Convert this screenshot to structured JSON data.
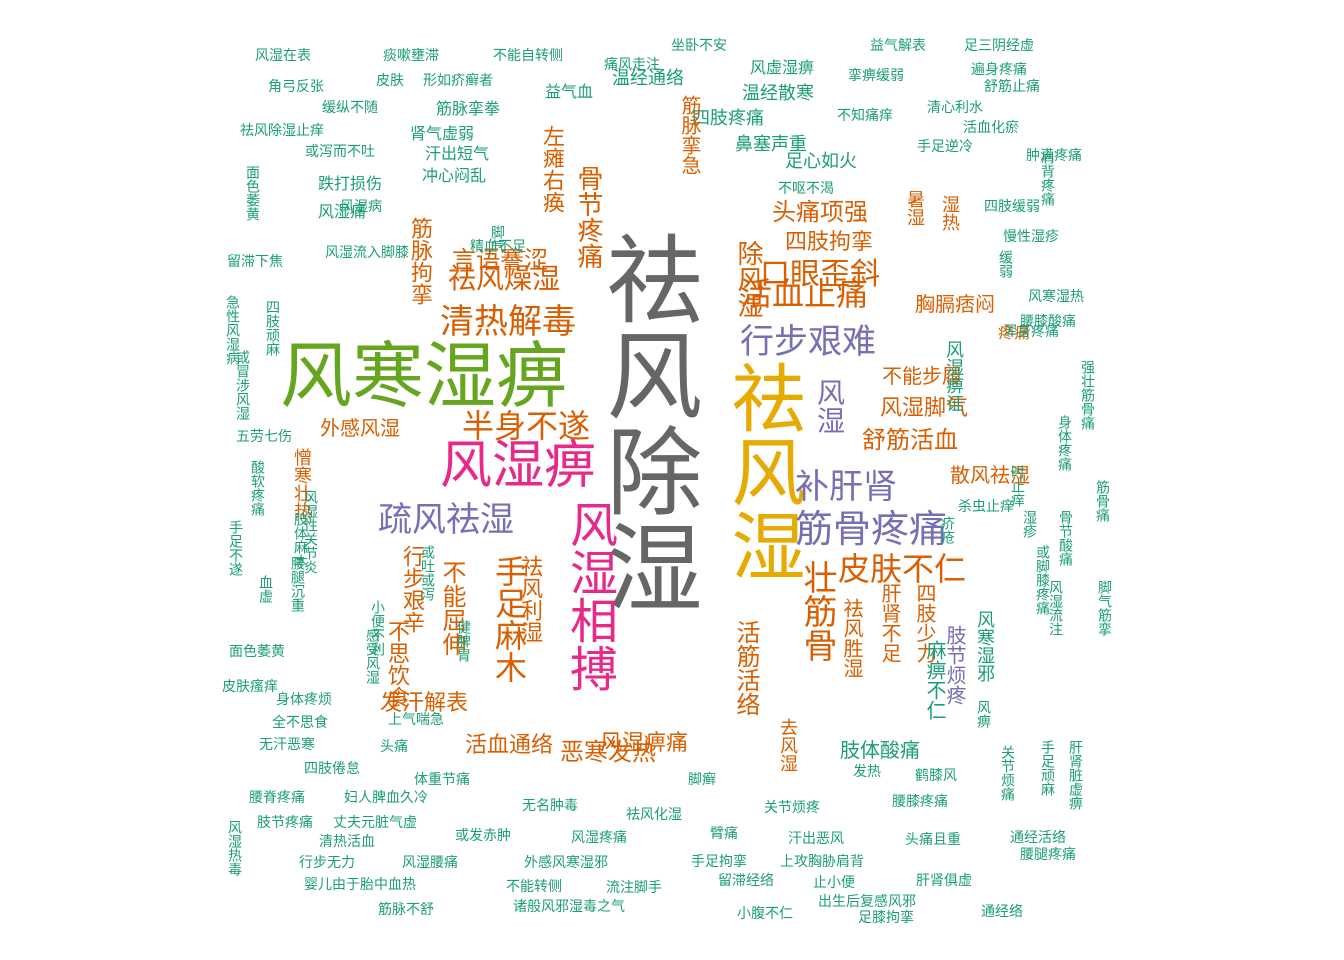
{
  "palette": {
    "teal": "#1b9e77",
    "orange": "#d95f02",
    "purple": "#7570b3",
    "pink": "#e7298a",
    "green": "#66a61e",
    "gold": "#e6ab02",
    "gray": "#666666"
  },
  "words": [
    {
      "text": "祛风除湿",
      "color": "gray",
      "weight": 10
    },
    {
      "text": "风寒湿痹",
      "color": "green",
      "weight": 8
    },
    {
      "text": "祛风湿",
      "color": "gold",
      "weight": 8
    },
    {
      "text": "风湿痹",
      "color": "pink",
      "weight": 6
    },
    {
      "text": "风湿相搏",
      "color": "pink",
      "weight": 6
    },
    {
      "text": "筋骨疼痛",
      "color": "purple",
      "weight": 5
    },
    {
      "text": "疏风祛湿",
      "color": "purple",
      "weight": 4
    },
    {
      "text": "补肝肾",
      "color": "purple",
      "weight": 4
    },
    {
      "text": "行步艰难",
      "color": "purple",
      "weight": 4
    },
    {
      "text": "清热解毒",
      "color": "orange",
      "weight": 4
    },
    {
      "text": "半身不遂",
      "color": "orange",
      "weight": 4
    },
    {
      "text": "活血止痛",
      "color": "orange",
      "weight": 4
    },
    {
      "text": "手足麻木",
      "color": "orange",
      "weight": 4
    },
    {
      "text": "皮肤不仁",
      "color": "orange",
      "weight": 4
    },
    {
      "text": "壮筋骨",
      "color": "orange",
      "weight": 4
    },
    {
      "text": "口眼歪斜",
      "color": "orange",
      "weight": 3
    },
    {
      "text": "风湿",
      "color": "purple",
      "weight": 3
    },
    {
      "text": "舒筋活血",
      "color": "orange",
      "weight": 3
    },
    {
      "text": "风湿脚气",
      "color": "orange",
      "weight": 3
    },
    {
      "text": "祛风燥湿",
      "color": "orange",
      "weight": 3
    },
    {
      "text": "言语謇涩",
      "color": "orange",
      "weight": 3
    },
    {
      "text": "骨节疼痛",
      "color": "orange",
      "weight": 3
    },
    {
      "text": "左瘫右痪",
      "color": "orange",
      "weight": 3
    },
    {
      "text": "除风湿",
      "color": "orange",
      "weight": 3
    },
    {
      "text": "头痛项强",
      "color": "orange",
      "weight": 3
    },
    {
      "text": "四肢拘挛",
      "color": "orange",
      "weight": 3
    },
    {
      "text": "不能屈伸",
      "color": "orange",
      "weight": 3
    },
    {
      "text": "行步艰辛",
      "color": "orange",
      "weight": 3
    },
    {
      "text": "祛风利湿",
      "color": "orange",
      "weight": 3
    },
    {
      "text": "活筋活络",
      "color": "orange",
      "weight": 3
    },
    {
      "text": "恶寒发热",
      "color": "orange",
      "weight": 3
    },
    {
      "text": "风湿痹痛",
      "color": "orange",
      "weight": 3
    },
    {
      "text": "活血通络",
      "color": "orange",
      "weight": 3
    },
    {
      "text": "发汗解表",
      "color": "orange",
      "weight": 3
    },
    {
      "text": "散风祛湿",
      "color": "orange",
      "weight": 3
    },
    {
      "text": "四肢少力",
      "color": "orange",
      "weight": 3
    },
    {
      "text": "肝肾不足",
      "color": "orange",
      "weight": 3
    },
    {
      "text": "祛风胜湿",
      "color": "orange",
      "weight": 3
    },
    {
      "text": "不能步履",
      "color": "orange",
      "weight": 3
    },
    {
      "text": "胸膈痞闷",
      "color": "orange",
      "weight": 3
    },
    {
      "text": "肢节烦疼",
      "color": "purple",
      "weight": 2
    },
    {
      "text": "肢体酸痛",
      "color": "teal",
      "weight": 2
    },
    {
      "text": "外感风湿",
      "color": "orange",
      "weight": 2
    },
    {
      "text": "憎寒壮热",
      "color": "orange",
      "weight": 2
    },
    {
      "text": "风寒湿邪",
      "color": "teal",
      "weight": 2
    },
    {
      "text": "麻痹不仁",
      "color": "teal",
      "weight": 2
    },
    {
      "text": "风湿痹证",
      "color": "teal",
      "weight": 2
    },
    {
      "text": "四肢疼痛",
      "color": "teal",
      "weight": 2
    },
    {
      "text": "筋脉挛急",
      "color": "orange",
      "weight": 2
    },
    {
      "text": "筋脉拘挛",
      "color": "orange",
      "weight": 2
    },
    {
      "text": "温经散寒",
      "color": "teal",
      "weight": 2
    },
    {
      "text": "温经通络",
      "color": "teal",
      "weight": 2
    },
    {
      "text": "风虚湿痹",
      "color": "teal",
      "weight": 2
    },
    {
      "text": "益气血",
      "color": "teal",
      "weight": 2
    },
    {
      "text": "筋脉挛拳",
      "color": "teal",
      "weight": 2
    },
    {
      "text": "肾气虚弱",
      "color": "teal",
      "weight": 2
    },
    {
      "text": "汗出短气",
      "color": "teal",
      "weight": 2
    },
    {
      "text": "冲心闷乱",
      "color": "teal",
      "weight": 2
    },
    {
      "text": "跌打损伤",
      "color": "teal",
      "weight": 2
    },
    {
      "text": "鼻塞声重",
      "color": "teal",
      "weight": 2
    },
    {
      "text": "足心如火",
      "color": "teal",
      "weight": 2
    },
    {
      "text": "不思饮食",
      "color": "orange",
      "weight": 2
    },
    {
      "text": "风湿痛",
      "color": "teal",
      "weight": 2
    },
    {
      "text": "风湿在表",
      "color": "teal",
      "weight": 1
    },
    {
      "text": "痰嗽壅滞",
      "color": "teal",
      "weight": 1
    },
    {
      "text": "不能自转侧",
      "color": "teal",
      "weight": 1
    },
    {
      "text": "痛风走注",
      "color": "teal",
      "weight": 1
    },
    {
      "text": "坐卧不安",
      "color": "teal",
      "weight": 1
    },
    {
      "text": "益气解表",
      "color": "teal",
      "weight": 1
    },
    {
      "text": "足三阴经虚",
      "color": "teal",
      "weight": 1
    },
    {
      "text": "皮肤",
      "color": "teal",
      "weight": 1
    },
    {
      "text": "形如疥癣者",
      "color": "teal",
      "weight": 1
    },
    {
      "text": "挛痹缓弱",
      "color": "teal",
      "weight": 1
    },
    {
      "text": "遍身疼痛",
      "color": "teal",
      "weight": 1
    },
    {
      "text": "角弓反张",
      "color": "teal",
      "weight": 1
    },
    {
      "text": "舒筋止痛",
      "color": "teal",
      "weight": 1
    },
    {
      "text": "缓纵不随",
      "color": "teal",
      "weight": 1
    },
    {
      "text": "清心利水",
      "color": "teal",
      "weight": 1
    },
    {
      "text": "祛风除湿止痒",
      "color": "teal",
      "weight": 1
    },
    {
      "text": "不知痛痒",
      "color": "teal",
      "weight": 1
    },
    {
      "text": "活血化瘀",
      "color": "teal",
      "weight": 1
    },
    {
      "text": "或泻而不吐",
      "color": "teal",
      "weight": 1
    },
    {
      "text": "手足逆冷",
      "color": "teal",
      "weight": 1
    },
    {
      "text": "肿满疼痛",
      "color": "teal",
      "weight": 1
    },
    {
      "text": "面色萎黄",
      "color": "teal",
      "weight": 1
    },
    {
      "text": "不呕不渴",
      "color": "teal",
      "weight": 1
    },
    {
      "text": "四肢缓弱",
      "color": "teal",
      "weight": 1
    },
    {
      "text": "慢性湿疹",
      "color": "teal",
      "weight": 1
    },
    {
      "text": "风湿病",
      "color": "teal",
      "weight": 1
    },
    {
      "text": "留滞下焦",
      "color": "teal",
      "weight": 1
    },
    {
      "text": "四肢顽麻",
      "color": "teal",
      "weight": 1
    },
    {
      "text": "急性风湿病",
      "color": "teal",
      "weight": 1
    },
    {
      "text": "风寒湿热",
      "color": "teal",
      "weight": 1
    },
    {
      "text": "疼痛",
      "color": "orange",
      "weight": 2
    },
    {
      "text": "浑身疼痛",
      "color": "teal",
      "weight": 1
    },
    {
      "text": "或冒涉风湿",
      "color": "teal",
      "weight": 1
    },
    {
      "text": "五劳七伤",
      "color": "teal",
      "weight": 1
    },
    {
      "text": "身体疼痛",
      "color": "teal",
      "weight": 1
    },
    {
      "text": "强壮筋骨痛",
      "color": "teal",
      "weight": 1
    },
    {
      "text": "骨节酸痛",
      "color": "teal",
      "weight": 1
    },
    {
      "text": "酸软疼痛",
      "color": "teal",
      "weight": 1
    },
    {
      "text": "时止痒",
      "color": "teal",
      "weight": 1
    },
    {
      "text": "手足不遂",
      "color": "teal",
      "weight": 1
    },
    {
      "text": "或脚膝疼痛",
      "color": "teal",
      "weight": 1
    },
    {
      "text": "风湿流注",
      "color": "teal",
      "weight": 1
    },
    {
      "text": "脚气筋挛",
      "color": "teal",
      "weight": 1
    },
    {
      "text": "面色萎黄",
      "color": "teal",
      "weight": 1
    },
    {
      "text": "风湿性关节炎",
      "color": "teal",
      "weight": 1
    },
    {
      "text": "皮肤瘙痒",
      "color": "teal",
      "weight": 1
    },
    {
      "text": "身体疼烦",
      "color": "teal",
      "weight": 1
    },
    {
      "text": "四肢倦怠",
      "color": "teal",
      "weight": 1
    },
    {
      "text": "腰脊疼痛",
      "color": "teal",
      "weight": 1
    },
    {
      "text": "妇人脾血久冷",
      "color": "teal",
      "weight": 1
    },
    {
      "text": "肢节疼痛",
      "color": "teal",
      "weight": 1
    },
    {
      "text": "丈夫元脏气虚",
      "color": "teal",
      "weight": 1
    },
    {
      "text": "清热活血",
      "color": "teal",
      "weight": 1
    },
    {
      "text": "行步无力",
      "color": "teal",
      "weight": 1
    },
    {
      "text": "风湿腰痛",
      "color": "teal",
      "weight": 1
    },
    {
      "text": "婴儿由于胎中血热",
      "color": "teal",
      "weight": 1
    },
    {
      "text": "筋脉不舒",
      "color": "teal",
      "weight": 1
    },
    {
      "text": "不能转侧",
      "color": "teal",
      "weight": 1
    },
    {
      "text": "诸般风邪湿毒之气",
      "color": "teal",
      "weight": 1
    },
    {
      "text": "风湿热毒",
      "color": "teal",
      "weight": 1
    },
    {
      "text": "体重节痛",
      "color": "teal",
      "weight": 1
    },
    {
      "text": "无名肿毒",
      "color": "teal",
      "weight": 1
    },
    {
      "text": "祛风化湿",
      "color": "teal",
      "weight": 1
    },
    {
      "text": "关节烦疼",
      "color": "teal",
      "weight": 1
    },
    {
      "text": "腰膝疼痛",
      "color": "teal",
      "weight": 1
    },
    {
      "text": "或发赤肿",
      "color": "teal",
      "weight": 1
    },
    {
      "text": "风湿疼痛",
      "color": "teal",
      "weight": 1
    },
    {
      "text": "臂痛",
      "color": "teal",
      "weight": 1
    },
    {
      "text": "汗出恶风",
      "color": "teal",
      "weight": 1
    },
    {
      "text": "头痛且重",
      "color": "teal",
      "weight": 1
    },
    {
      "text": "通经活络",
      "color": "teal",
      "weight": 1
    },
    {
      "text": "腰腿疼痛",
      "color": "teal",
      "weight": 1
    },
    {
      "text": "外感风寒湿邪",
      "color": "teal",
      "weight": 1
    },
    {
      "text": "手足拘挛",
      "color": "teal",
      "weight": 1
    },
    {
      "text": "上攻胸胁肩背",
      "color": "teal",
      "weight": 1
    },
    {
      "text": "流注脚手",
      "color": "teal",
      "weight": 1
    },
    {
      "text": "留滞经络",
      "color": "teal",
      "weight": 1
    },
    {
      "text": "止小便",
      "color": "teal",
      "weight": 1
    },
    {
      "text": "肝肾俱虚",
      "color": "teal",
      "weight": 1
    },
    {
      "text": "出生后复感风邪",
      "color": "teal",
      "weight": 1
    },
    {
      "text": "小腹不仁",
      "color": "teal",
      "weight": 1
    },
    {
      "text": "足膝拘挛",
      "color": "teal",
      "weight": 1
    },
    {
      "text": "通经络",
      "color": "teal",
      "weight": 1
    },
    {
      "text": "鹤膝风",
      "color": "teal",
      "weight": 1
    },
    {
      "text": "发热",
      "color": "teal",
      "weight": 1
    },
    {
      "text": "脚癣",
      "color": "teal",
      "weight": 1
    },
    {
      "text": "去风湿",
      "color": "orange",
      "weight": 2
    },
    {
      "text": "肝肾脏虚痹",
      "color": "teal",
      "weight": 1
    },
    {
      "text": "手足顽麻",
      "color": "teal",
      "weight": 1
    },
    {
      "text": "关节烦痛",
      "color": "teal",
      "weight": 1
    },
    {
      "text": "风痹",
      "color": "teal",
      "weight": 1
    },
    {
      "text": "头痛",
      "color": "teal",
      "weight": 1
    },
    {
      "text": "上气喘急",
      "color": "teal",
      "weight": 1
    },
    {
      "text": "全不思食",
      "color": "teal",
      "weight": 1
    },
    {
      "text": "无汗恶寒",
      "color": "teal",
      "weight": 1
    },
    {
      "text": "腰腿沉重",
      "color": "teal",
      "weight": 1
    },
    {
      "text": "肢体麻木",
      "color": "teal",
      "weight": 1
    },
    {
      "text": "湿热",
      "color": "orange",
      "weight": 2
    },
    {
      "text": "暑湿",
      "color": "orange",
      "weight": 2
    },
    {
      "text": "精血不足",
      "color": "teal",
      "weight": 1
    },
    {
      "text": "脚气",
      "color": "teal",
      "weight": 1
    },
    {
      "text": "风湿流入脚膝",
      "color": "teal",
      "weight": 1
    },
    {
      "text": "疥疮",
      "color": "teal",
      "weight": 1
    },
    {
      "text": "湿疹",
      "color": "teal",
      "weight": 1
    },
    {
      "text": "腰膝酸痛",
      "color": "teal",
      "weight": 1
    },
    {
      "text": "筋骨痛",
      "color": "teal",
      "weight": 1
    },
    {
      "text": "杀虫止痒",
      "color": "teal",
      "weight": 1
    },
    {
      "text": "肩背疼痛",
      "color": "teal",
      "weight": 1
    },
    {
      "text": "小便不利",
      "color": "teal",
      "weight": 1
    },
    {
      "text": "健脾胃",
      "color": "teal",
      "weight": 1
    },
    {
      "text": "感受风湿",
      "color": "teal",
      "weight": 1
    },
    {
      "text": "或吐或泻",
      "color": "teal",
      "weight": 1
    },
    {
      "text": "血虚",
      "color": "teal",
      "weight": 1
    },
    {
      "text": "缓弱",
      "color": "teal",
      "weight": 1
    }
  ]
}
